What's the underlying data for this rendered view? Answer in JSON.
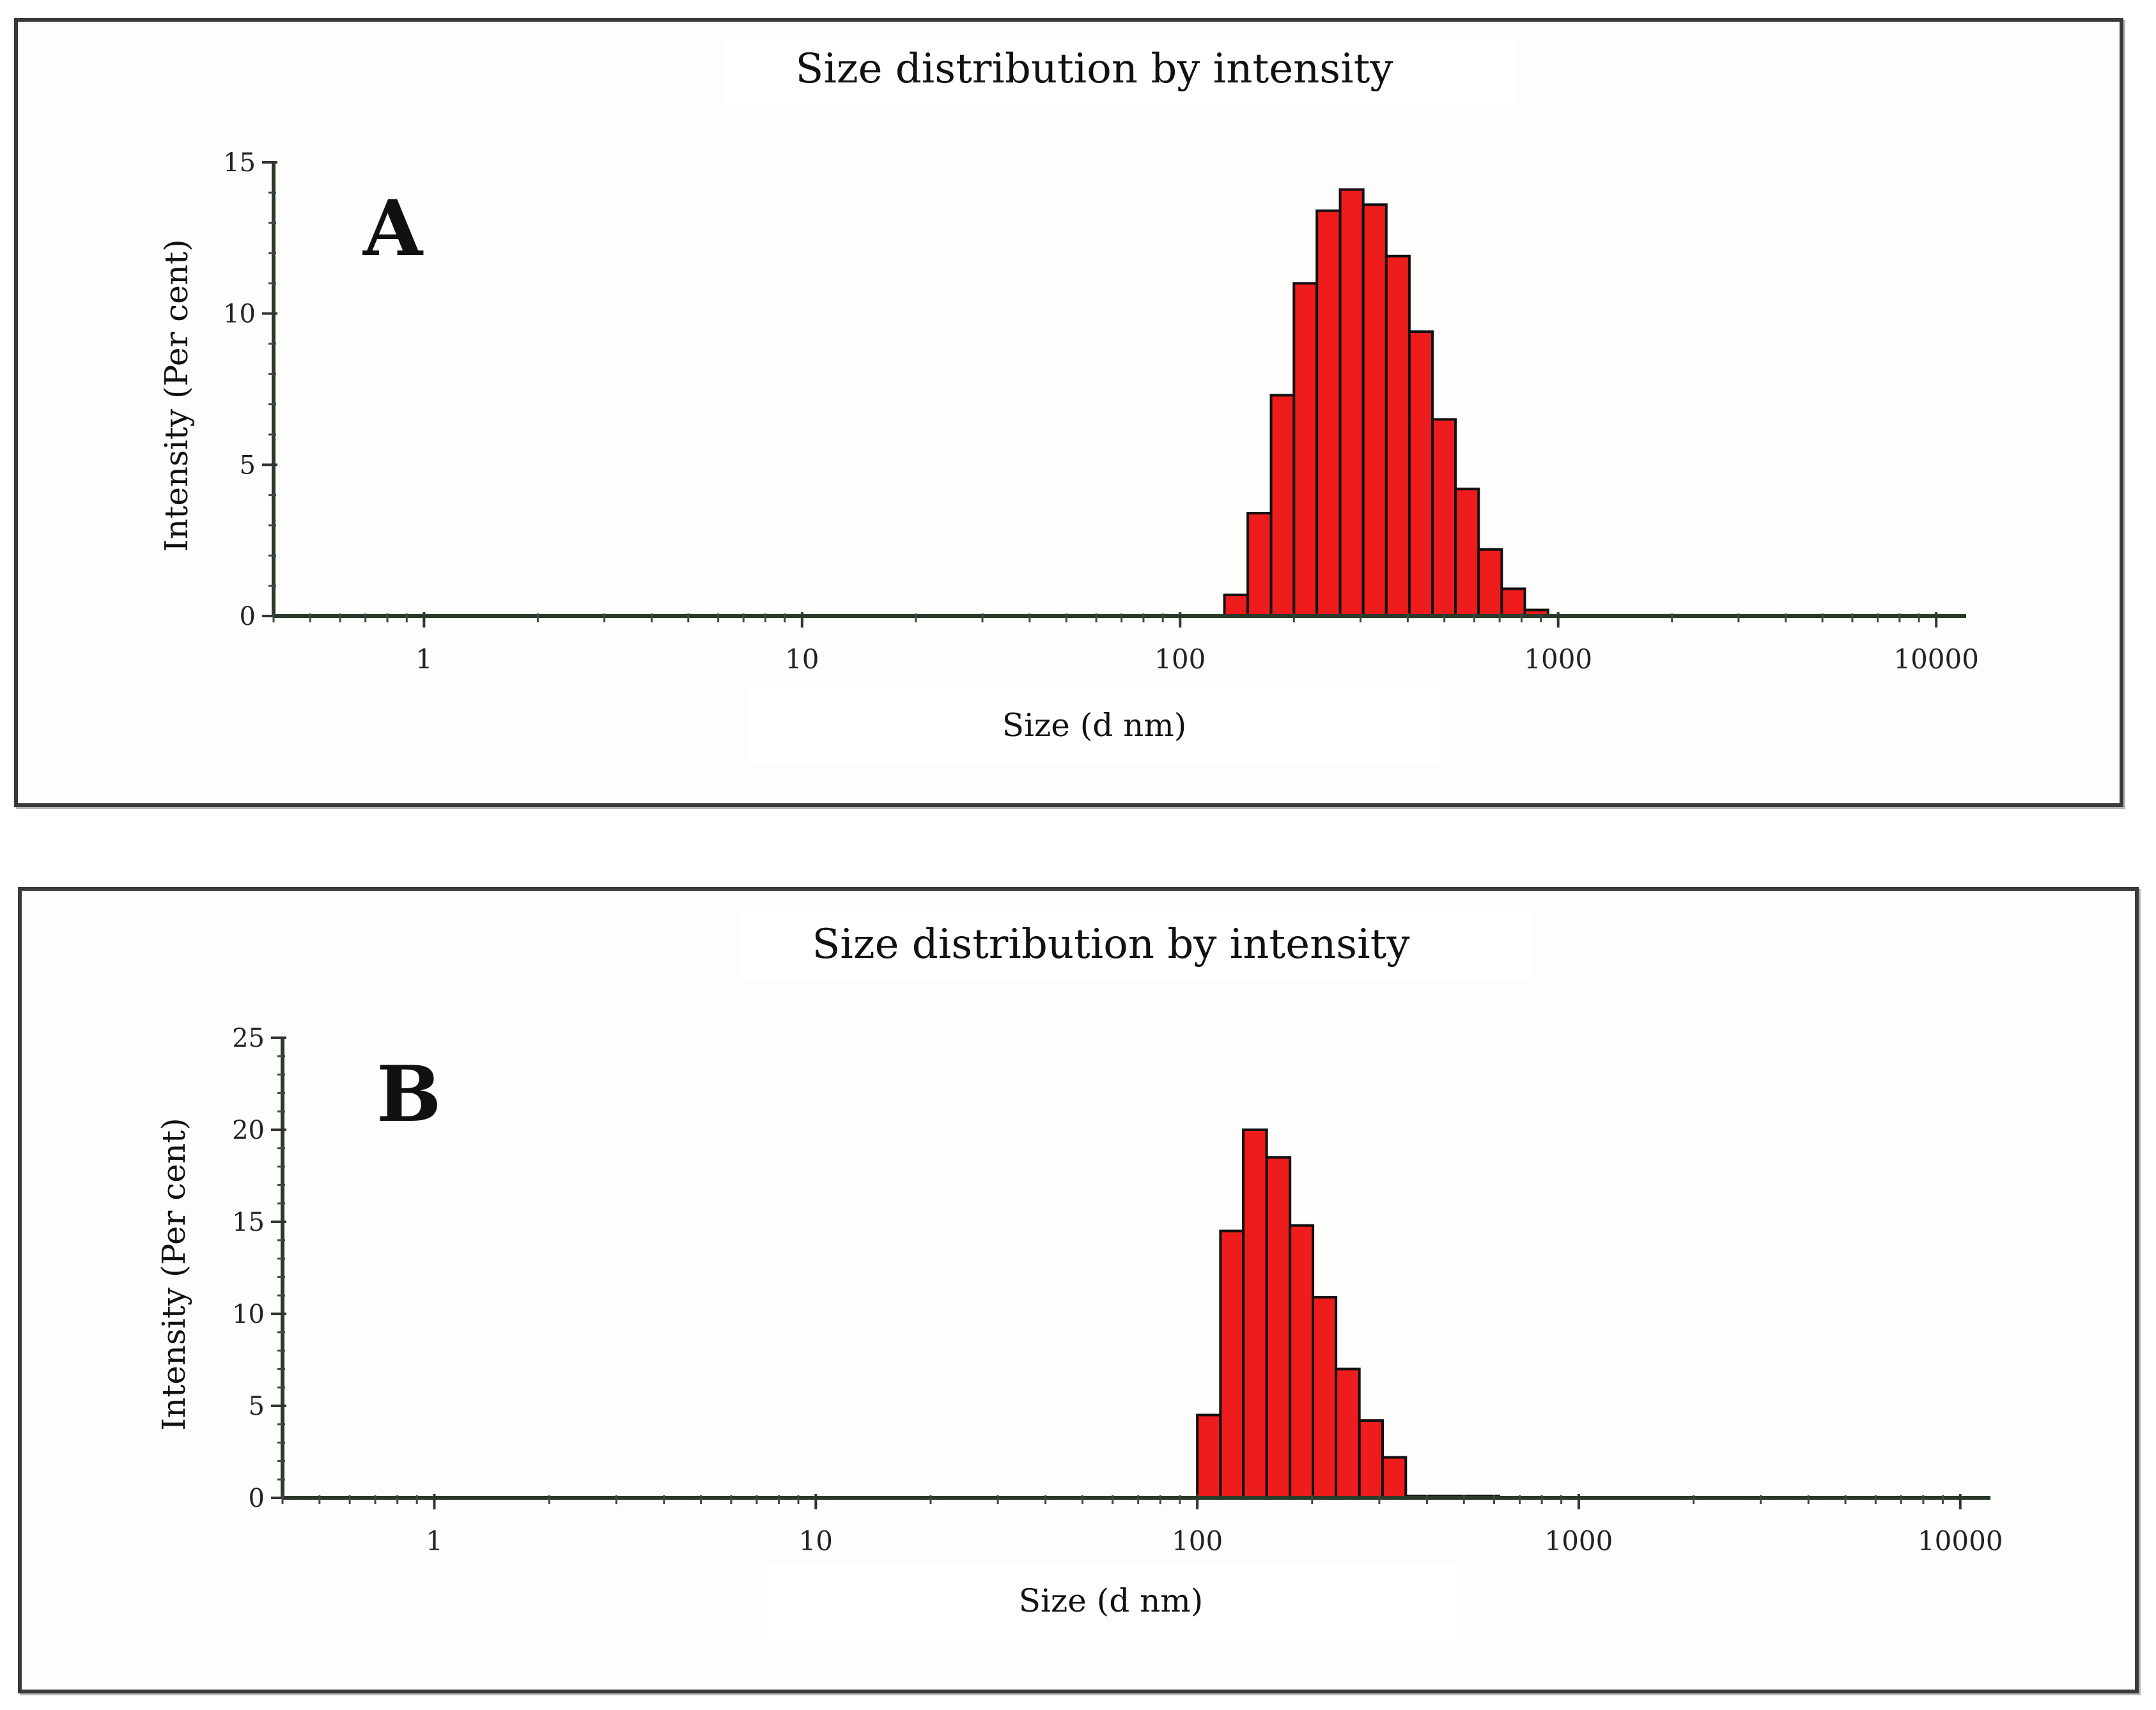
{
  "charts": [
    {
      "panel_label": "A",
      "chart_data": {
        "type": "bar",
        "title": "Size distribution by intensity",
        "xlabel": "Size (d nm)",
        "ylabel": "Intensity (Per cent)",
        "xscale": "log",
        "xlim": [
          0.4,
          12000
        ],
        "ylim": [
          0,
          15
        ],
        "xticks": [
          1,
          10,
          100,
          1000,
          10000
        ],
        "xtick_labels": [
          "1",
          "10",
          "100",
          "1000",
          "10000"
        ],
        "yticks": [
          0,
          5,
          10,
          15
        ],
        "ytick_labels": [
          "0",
          "5",
          "10",
          "15"
        ],
        "bar_color": "#ee1c1c",
        "bins_edges_nm": [
          131,
          151,
          174,
          200,
          230,
          265,
          305,
          351,
          404,
          465,
          535,
          616,
          709,
          816,
          940,
          1082
        ],
        "values": [
          0.7,
          3.4,
          7.3,
          11.0,
          13.4,
          14.1,
          13.6,
          11.9,
          9.4,
          6.5,
          4.2,
          2.2,
          0.9,
          0.2,
          0
        ]
      }
    },
    {
      "panel_label": "B",
      "chart_data": {
        "type": "bar",
        "title": "Size distribution by intensity",
        "xlabel": "Size (d nm)",
        "ylabel": "Intensity (Per cent)",
        "xscale": "log",
        "xlim": [
          0.4,
          12000
        ],
        "ylim": [
          0,
          25
        ],
        "xticks": [
          1,
          10,
          100,
          1000,
          10000
        ],
        "xtick_labels": [
          "1",
          "10",
          "100",
          "1000",
          "10000"
        ],
        "yticks": [
          0,
          5,
          10,
          15,
          20,
          25
        ],
        "ytick_labels": [
          "0",
          "5",
          "10",
          "15",
          "20",
          "25"
        ],
        "bar_color": "#ee1c1c",
        "bins_edges_nm": [
          100,
          115,
          132,
          152,
          175,
          201,
          231,
          266,
          306,
          352,
          405,
          466,
          536,
          617
        ],
        "values": [
          4.5,
          14.5,
          20.0,
          18.5,
          14.8,
          10.9,
          7.0,
          4.2,
          2.2,
          0.1,
          0.1,
          0.1,
          0.1
        ]
      }
    }
  ]
}
